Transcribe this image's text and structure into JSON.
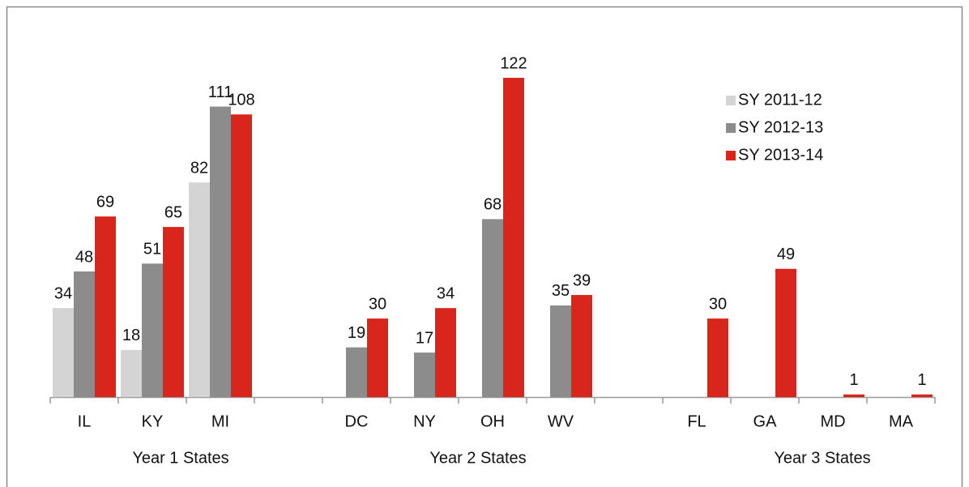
{
  "chart_data": {
    "type": "bar",
    "categories": [
      "IL",
      "KY",
      "MI",
      null,
      "DC",
      "NY",
      "OH",
      "WV",
      null,
      "FL",
      "GA",
      "MD",
      "MA"
    ],
    "group_labels": [
      "Year 1 States",
      "Year 2 States",
      "Year 3 States"
    ],
    "series": [
      {
        "name": "SY 2011-12",
        "color": "#d4d4d4",
        "values": [
          34,
          18,
          82,
          null,
          null,
          null,
          null,
          null,
          null,
          null,
          null,
          null,
          null
        ]
      },
      {
        "name": "SY 2012-13",
        "color": "#8c8c8c",
        "values": [
          48,
          51,
          111,
          null,
          19,
          17,
          68,
          35,
          null,
          null,
          null,
          null,
          null
        ]
      },
      {
        "name": "SY 2013-14",
        "color": "#d9261c",
        "values": [
          69,
          65,
          108,
          null,
          30,
          34,
          122,
          39,
          null,
          30,
          49,
          1,
          1
        ]
      }
    ],
    "legend": "upper right"
  }
}
